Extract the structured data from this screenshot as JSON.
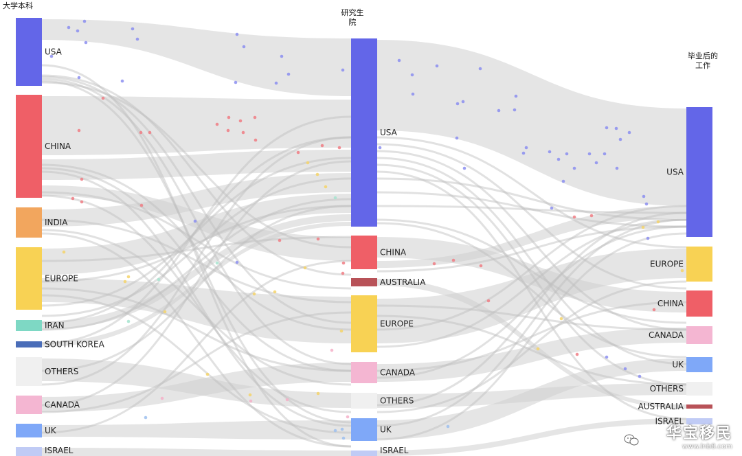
{
  "columns": [
    {
      "id": "undergrad",
      "title_lines": [
        "大学本科"
      ]
    },
    {
      "id": "grad",
      "title_lines": [
        "研究生",
        "院"
      ]
    },
    {
      "id": "job",
      "title_lines": [
        "毕业后的",
        "工作"
      ]
    }
  ],
  "colors": {
    "USA": "#6366e8",
    "CHINA": "#ef5f67",
    "INDIA": "#f2a65e",
    "EUROPE": "#f8d254",
    "IRAN": "#7ed8c4",
    "SOUTH KOREA": "#4a6db8",
    "OTHERS": "#f0f0f0",
    "CANADA": "#f4b6d2",
    "UK": "#7fa8f8",
    "ISRAEL": "#c0cbf5",
    "AUSTRALIA": "#b85258",
    "link": "#cfcfcf",
    "link_opacity": 0.55
  },
  "nodes": {
    "undergrad": [
      "USA",
      "CHINA",
      "INDIA",
      "EUROPE",
      "IRAN",
      "SOUTH KOREA",
      "OTHERS",
      "CANADA",
      "UK",
      "ISRAEL"
    ],
    "grad": [
      "USA",
      "CHINA",
      "AUSTRALIA",
      "EUROPE",
      "CANADA",
      "OTHERS",
      "UK",
      "ISRAEL"
    ],
    "job": [
      "USA",
      "EUROPE",
      "CHINA",
      "CANADA",
      "UK",
      "OTHERS",
      "AUSTRALIA",
      "ISRAEL"
    ]
  },
  "watermark": {
    "name": "华宝移民",
    "url": "www.lnb8.com"
  }
}
